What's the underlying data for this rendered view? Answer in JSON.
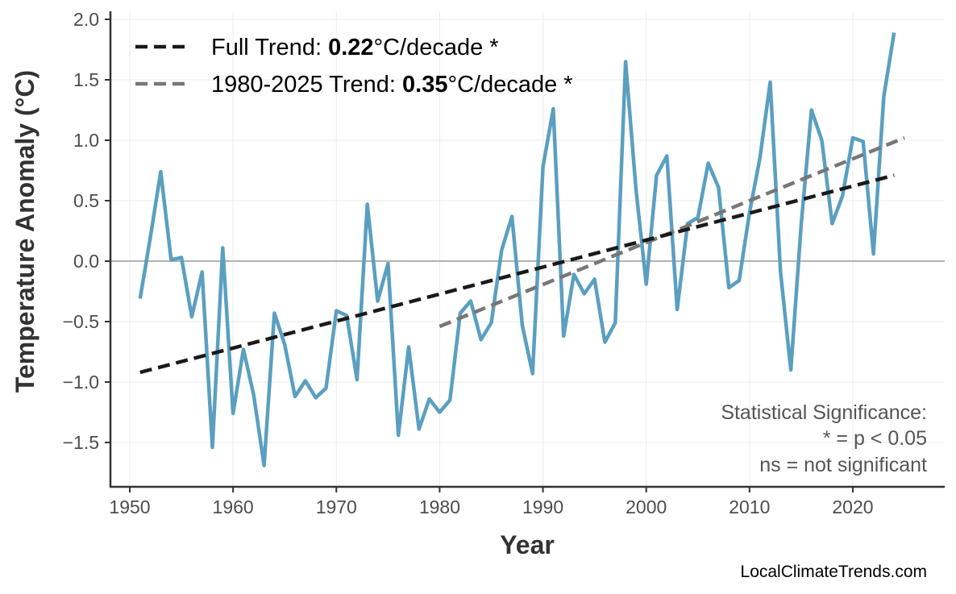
{
  "chart_data": {
    "type": "line",
    "title": "",
    "xlabel": "Year",
    "ylabel": "Temperature Anomaly (°C)",
    "xlim": [
      1948,
      2029
    ],
    "ylim": [
      -1.87,
      2.07
    ],
    "xticks": [
      1950,
      1960,
      1970,
      1980,
      1990,
      2000,
      2010,
      2020
    ],
    "xtick_labels": [
      "1950",
      "1960",
      "1970",
      "1980",
      "1990",
      "2000",
      "2010",
      "2020"
    ],
    "yticks": [
      2.0,
      1.5,
      1.0,
      0.5,
      0.0,
      -0.5,
      -1.0,
      -1.5
    ],
    "ytick_labels": [
      "2.0",
      "1.5",
      "1.0",
      "0.5",
      "0.0",
      "−0.5",
      "−1.0",
      "−1.5"
    ],
    "grid": true,
    "zero_line": true,
    "series": [
      {
        "color": "#5a9fc0",
        "x": [
          1951,
          1952,
          1953,
          1954,
          1955,
          1956,
          1957,
          1958,
          1959,
          1960,
          1961,
          1962,
          1963,
          1964,
          1965,
          1966,
          1967,
          1968,
          1969,
          1970,
          1971,
          1972,
          1973,
          1974,
          1975,
          1976,
          1977,
          1978,
          1979,
          1980,
          1981,
          1982,
          1983,
          1984,
          1985,
          1986,
          1987,
          1988,
          1989,
          1990,
          1991,
          1992,
          1993,
          1994,
          1995,
          1996,
          1997,
          1998,
          1999,
          2000,
          2001,
          2002,
          2003,
          2004,
          2005,
          2006,
          2007,
          2008,
          2009,
          2010,
          2011,
          2012,
          2013,
          2014,
          2015,
          2016,
          2017,
          2018,
          2019,
          2020,
          2021,
          2022,
          2023,
          2024
        ],
        "values": [
          -0.31,
          0.2,
          0.74,
          0.01,
          0.03,
          -0.46,
          -0.09,
          -1.54,
          0.11,
          -1.26,
          -0.73,
          -1.11,
          -1.69,
          -0.43,
          -0.69,
          -1.12,
          -0.99,
          -1.13,
          -1.05,
          -0.41,
          -0.45,
          -0.98,
          0.47,
          -0.33,
          -0.02,
          -1.44,
          -0.71,
          -1.39,
          -1.14,
          -1.25,
          -1.15,
          -0.43,
          -0.33,
          -0.65,
          -0.51,
          0.09,
          0.37,
          -0.53,
          -0.93,
          0.78,
          1.26,
          -0.62,
          -0.11,
          -0.27,
          -0.15,
          -0.67,
          -0.51,
          1.65,
          0.6,
          -0.19,
          0.71,
          0.87,
          -0.4,
          0.31,
          0.36,
          0.81,
          0.61,
          -0.22,
          -0.16,
          0.4,
          0.85,
          1.48,
          -0.09,
          -0.9,
          0.3,
          1.25,
          1.0,
          0.31,
          0.54,
          1.02,
          0.99,
          0.06,
          1.36,
          1.89
        ]
      }
    ],
    "trend_lines": [
      {
        "label_prefix": "Full Trend: ",
        "rate": "0.22",
        "label_suffix": "°C/decade *",
        "color": "#1a1a1a",
        "x": [
          1951,
          2024
        ],
        "values": [
          -0.92,
          0.71
        ]
      },
      {
        "label_prefix": "1980-2025 Trend: ",
        "rate": "0.35",
        "label_suffix": "°C/decade *",
        "color": "#777777",
        "x": [
          1980,
          2025
        ],
        "values": [
          -0.54,
          1.02
        ]
      }
    ],
    "legend_position": "top-left",
    "annotation": [
      "Statistical Significance:",
      "* = p < 0.05",
      "ns = not significant"
    ]
  },
  "credit": "LocalClimateTrends.com"
}
